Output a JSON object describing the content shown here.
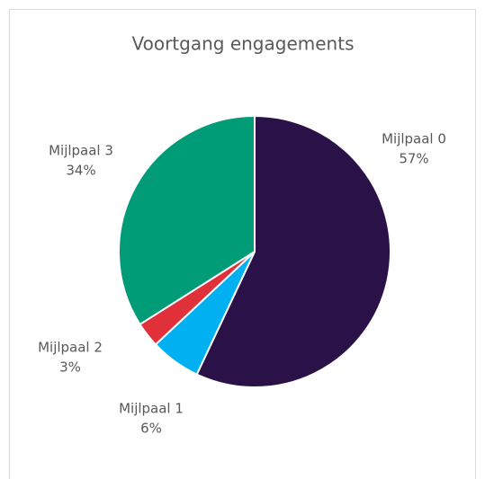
{
  "chart_data": {
    "type": "pie",
    "title": "Voortgang engagements",
    "categories": [
      "Mijlpaal 0",
      "Mijlpaal 1",
      "Mijlpaal 2",
      "Mijlpaal 3"
    ],
    "values": [
      57,
      6,
      3,
      34
    ],
    "value_labels": [
      "57%",
      "6%",
      "3%",
      "34%"
    ],
    "colors": [
      "#2a1248",
      "#00b0f0",
      "#e0303a",
      "#009c78"
    ]
  }
}
